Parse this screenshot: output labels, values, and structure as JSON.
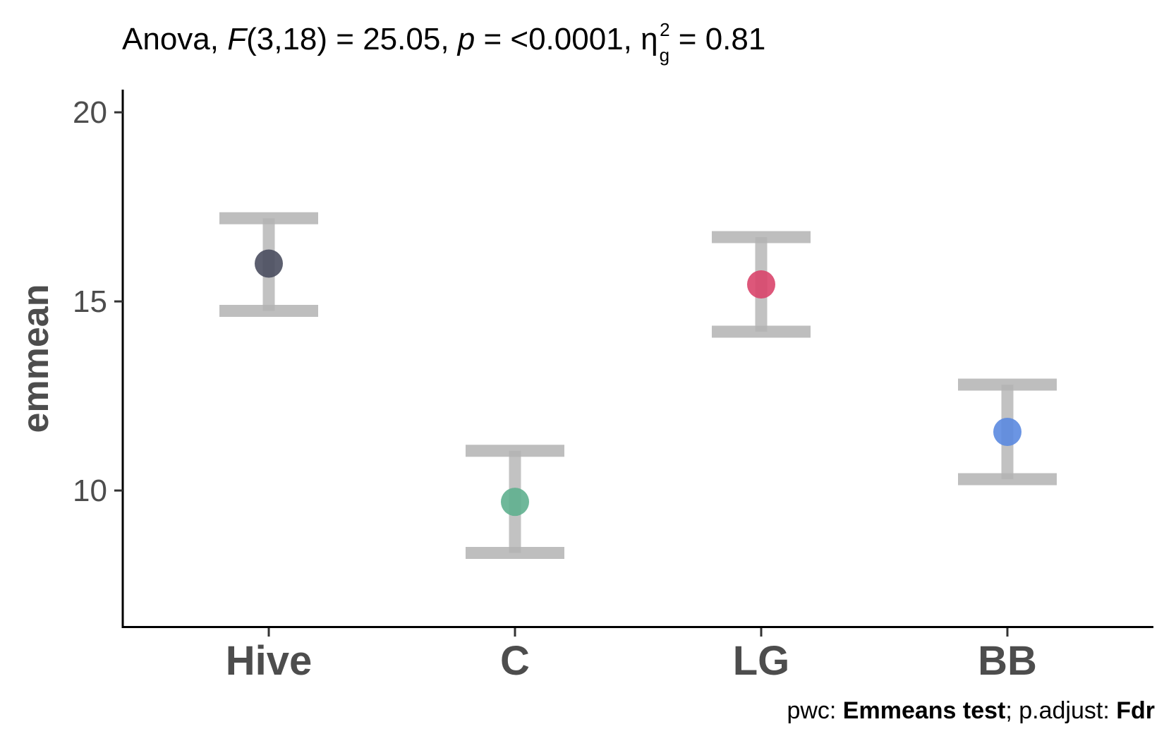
{
  "title": {
    "prefix": "Anova, ",
    "f_symbol": "F",
    "f_df": "(3,18)",
    "f_value": " = 25.05, ",
    "p_symbol": "p",
    "p_value": " = <0.0001, ",
    "eta_symbol": "η",
    "eta_sub": "g",
    "eta_sup": "2",
    "eta_value": " = 0.81"
  },
  "caption": {
    "pwc_label": "pwc: ",
    "pwc_value": "Emmeans test",
    "sep": "; p.adjust: ",
    "adjust_value": "Fdr"
  },
  "chart_data": {
    "type": "scatter",
    "title": "Anova, F(3,18) = 25.05, p = <0.0001, η²g = 0.81",
    "xlabel": "",
    "ylabel": "emmean",
    "ylim": [
      6.4,
      20.6
    ],
    "yticks": [
      10,
      15,
      20
    ],
    "categories": [
      "Hive",
      "C",
      "LG",
      "BB"
    ],
    "series": [
      {
        "values": [
          16.0,
          9.7,
          15.45,
          11.55
        ],
        "lower": [
          14.75,
          8.35,
          14.2,
          10.3
        ],
        "upper": [
          17.2,
          11.05,
          16.7,
          12.8
        ],
        "colors": [
          "#4a4e5f",
          "#5fb08f",
          "#d9456c",
          "#5b8ae0"
        ]
      }
    ],
    "errorbar_color": "#b3b3b3",
    "grid": false,
    "legend": "none"
  }
}
